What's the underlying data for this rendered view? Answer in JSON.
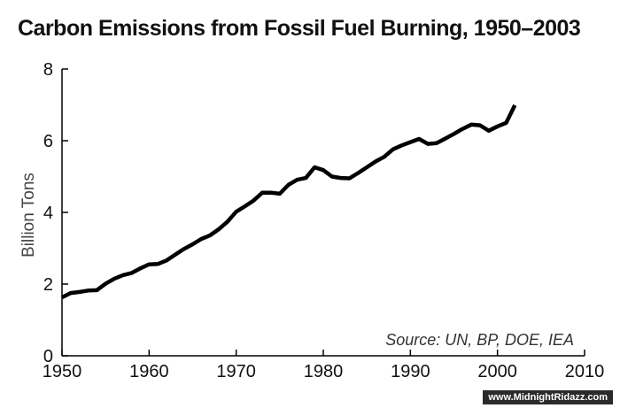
{
  "chart_data": {
    "type": "line",
    "title": "Carbon Emissions from Fossil Fuel Burning, 1950–2003",
    "xlabel": "",
    "ylabel": "Billion Tons",
    "source": "Source: UN, BP, DOE, IEA",
    "xlim": [
      1950,
      2010
    ],
    "ylim": [
      0,
      8
    ],
    "x_ticks": [
      1950,
      1960,
      1970,
      1980,
      1990,
      2000,
      2010
    ],
    "y_ticks": [
      0,
      2,
      4,
      6,
      8
    ],
    "grid": false,
    "series": [
      {
        "name": "",
        "color": "#000000",
        "x": [
          1950,
          1951,
          1952,
          1953,
          1954,
          1955,
          1956,
          1957,
          1958,
          1959,
          1960,
          1961,
          1962,
          1963,
          1964,
          1965,
          1966,
          1967,
          1968,
          1969,
          1970,
          1971,
          1972,
          1973,
          1974,
          1975,
          1976,
          1977,
          1978,
          1979,
          1980,
          1981,
          1982,
          1983,
          1984,
          1985,
          1986,
          1987,
          1988,
          1989,
          1990,
          1991,
          1992,
          1993,
          1994,
          1995,
          1996,
          1997,
          1998,
          1999,
          2000,
          2001,
          2002
        ],
        "y": [
          1.63,
          1.75,
          1.78,
          1.82,
          1.83,
          2.01,
          2.15,
          2.25,
          2.31,
          2.44,
          2.55,
          2.56,
          2.66,
          2.82,
          2.98,
          3.11,
          3.26,
          3.36,
          3.53,
          3.74,
          4.02,
          4.17,
          4.33,
          4.55,
          4.55,
          4.52,
          4.77,
          4.91,
          4.96,
          5.26,
          5.18,
          5.0,
          4.96,
          4.95,
          5.1,
          5.26,
          5.42,
          5.55,
          5.76,
          5.87,
          5.96,
          6.05,
          5.91,
          5.93,
          6.06,
          6.19,
          6.33,
          6.45,
          6.43,
          6.28,
          6.4,
          6.5,
          6.99
        ]
      }
    ]
  },
  "watermark": "www.MidnightRidazz.com"
}
